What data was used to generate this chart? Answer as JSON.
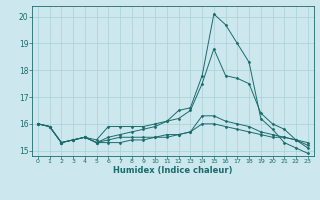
{
  "title": "",
  "xlabel": "Humidex (Indice chaleur)",
  "background_color": "#cce8ee",
  "grid_color": "#aacfd8",
  "line_color": "#1a6b6b",
  "xlim": [
    -0.5,
    23.5
  ],
  "ylim": [
    14.8,
    20.4
  ],
  "xticks": [
    0,
    1,
    2,
    3,
    4,
    5,
    6,
    7,
    8,
    9,
    10,
    11,
    12,
    13,
    14,
    15,
    16,
    17,
    18,
    19,
    20,
    21,
    22,
    23
  ],
  "yticks": [
    15,
    16,
    17,
    18,
    19,
    20
  ],
  "series": [
    [
      16.0,
      15.9,
      15.3,
      15.4,
      15.5,
      15.4,
      15.9,
      15.9,
      15.9,
      15.9,
      16.0,
      16.1,
      16.5,
      16.6,
      17.8,
      20.1,
      19.7,
      19.0,
      18.3,
      16.2,
      15.8,
      15.3,
      15.1,
      14.9
    ],
    [
      16.0,
      15.9,
      15.3,
      15.4,
      15.5,
      15.3,
      15.3,
      15.3,
      15.4,
      15.4,
      15.5,
      15.5,
      15.6,
      15.7,
      16.3,
      16.3,
      16.1,
      16.0,
      15.9,
      15.7,
      15.6,
      15.5,
      15.4,
      15.3
    ],
    [
      16.0,
      15.9,
      15.3,
      15.4,
      15.5,
      15.3,
      15.4,
      15.5,
      15.5,
      15.5,
      15.5,
      15.6,
      15.6,
      15.7,
      16.0,
      16.0,
      15.9,
      15.8,
      15.7,
      15.6,
      15.5,
      15.5,
      15.4,
      15.2
    ],
    [
      16.0,
      15.9,
      15.3,
      15.4,
      15.5,
      15.3,
      15.5,
      15.6,
      15.7,
      15.8,
      15.9,
      16.1,
      16.2,
      16.5,
      17.5,
      18.8,
      17.8,
      17.7,
      17.5,
      16.4,
      16.0,
      15.8,
      15.4,
      15.1
    ]
  ]
}
